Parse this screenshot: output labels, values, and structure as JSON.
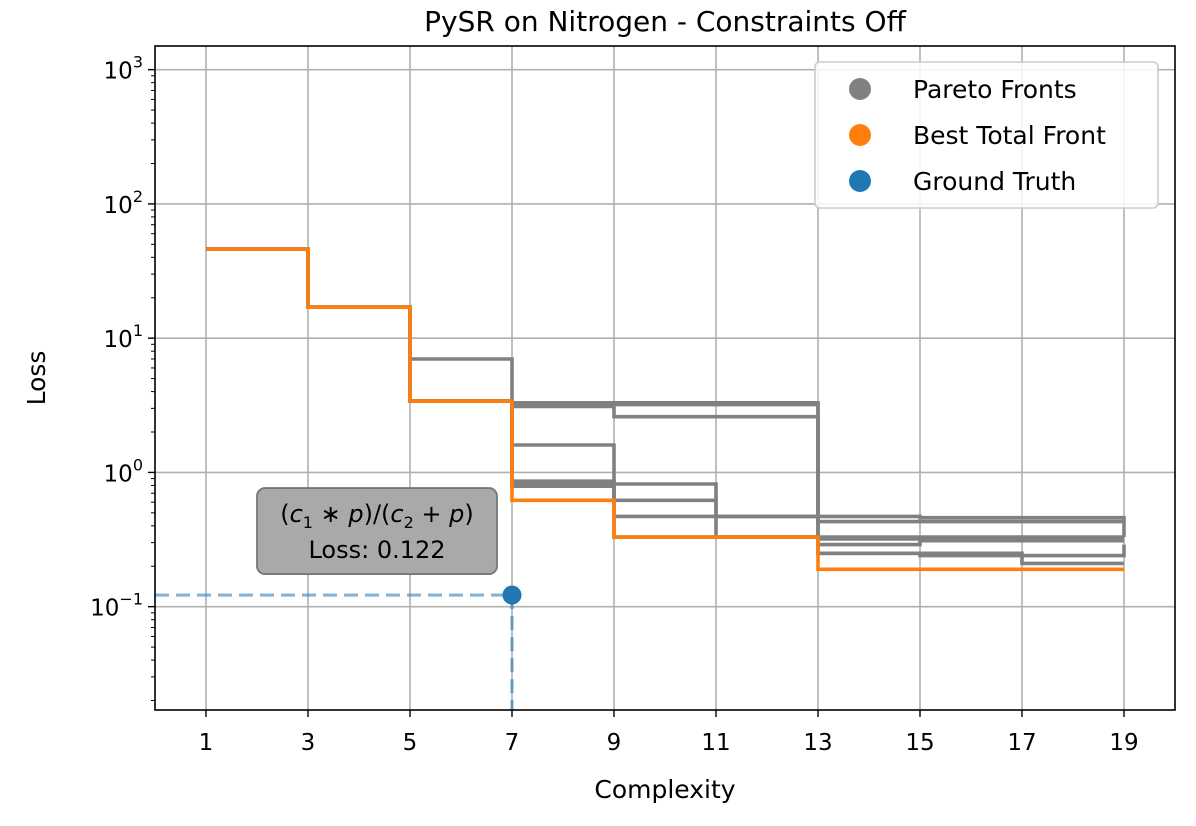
{
  "chart_data": {
    "type": "line",
    "title": "PySR on Nitrogen - Constraints Off",
    "xlabel": "Complexity",
    "ylabel": "Loss",
    "y_scale": "log",
    "xlim": [
      0,
      20
    ],
    "ylim": [
      0.017,
      1500
    ],
    "x_ticks": [
      1,
      3,
      5,
      7,
      9,
      11,
      13,
      15,
      17,
      19
    ],
    "x_tick_labels": [
      "1",
      "3",
      "5",
      "7",
      "9",
      "11",
      "13",
      "15",
      "17",
      "19"
    ],
    "y_ticks": [
      {
        "value": 0.1,
        "base": "10",
        "exp": "−1"
      },
      {
        "value": 1,
        "base": "10",
        "exp": "0"
      },
      {
        "value": 10,
        "base": "10",
        "exp": "1"
      },
      {
        "value": 100,
        "base": "10",
        "exp": "2"
      },
      {
        "value": 1000,
        "base": "10",
        "exp": "3"
      }
    ],
    "grid": true,
    "legend_position": "top-right",
    "legend": [
      {
        "label": "Pareto Fronts",
        "color": "#808080"
      },
      {
        "label": "Best Total Front",
        "color": "#ff7f0e"
      },
      {
        "label": "Ground Truth",
        "color": "#1f77b4"
      }
    ],
    "series": [
      {
        "name": "Pareto Fronts",
        "color": "#808080",
        "role": "pareto",
        "x": [
          1,
          3,
          5,
          7,
          9,
          13,
          19
        ],
        "y": [
          46,
          17,
          3.4,
          3.3,
          3.3,
          0.43,
          0.43
        ]
      },
      {
        "name": "Pareto Fronts",
        "color": "#808080",
        "role": "pareto",
        "x": [
          1,
          3,
          5,
          7,
          9,
          13,
          15,
          19
        ],
        "y": [
          46,
          17,
          3.4,
          3.2,
          3.2,
          0.47,
          0.46,
          0.33
        ]
      },
      {
        "name": "Pareto Fronts",
        "color": "#808080",
        "role": "pareto",
        "x": [
          1,
          3,
          5,
          7,
          9,
          13,
          19
        ],
        "y": [
          46,
          17,
          3.4,
          3.1,
          2.6,
          0.33,
          0.33
        ]
      },
      {
        "name": "Pareto Fronts",
        "color": "#808080",
        "role": "pareto",
        "x": [
          1,
          3,
          5,
          7,
          9,
          11,
          13,
          19
        ],
        "y": [
          46,
          17,
          7.0,
          1.6,
          0.82,
          0.47,
          0.32,
          0.32
        ]
      },
      {
        "name": "Pareto Fronts",
        "color": "#808080",
        "role": "pareto",
        "x": [
          1,
          3,
          5,
          7,
          9,
          11,
          13,
          15,
          19
        ],
        "y": [
          46,
          17,
          3.4,
          0.86,
          0.62,
          0.47,
          0.29,
          0.31,
          0.31
        ]
      },
      {
        "name": "Pareto Fronts",
        "color": "#808080",
        "role": "pareto",
        "x": [
          1,
          3,
          5,
          7,
          9,
          11,
          13,
          17,
          19
        ],
        "y": [
          46,
          17,
          3.4,
          0.81,
          0.47,
          0.33,
          0.25,
          0.21,
          0.21
        ]
      },
      {
        "name": "Pareto Fronts",
        "color": "#808080",
        "role": "pareto",
        "x": [
          1,
          3,
          5,
          7,
          9,
          11,
          13,
          15,
          19
        ],
        "y": [
          46,
          17,
          3.4,
          0.79,
          0.33,
          0.33,
          0.25,
          0.24,
          0.29
        ]
      },
      {
        "name": "Best Total Front",
        "color": "#ff7f0e",
        "role": "best",
        "x": [
          1,
          3,
          5,
          7,
          9,
          11,
          13,
          19
        ],
        "y": [
          46,
          17,
          3.4,
          0.62,
          0.33,
          0.33,
          0.19,
          0.19
        ]
      }
    ],
    "ground_truth": {
      "name": "Ground Truth",
      "color": "#1f77b4",
      "x": 7,
      "y": 0.122,
      "x_text": "7",
      "y_text": "0.122",
      "label_formula_parts": [
        {
          "t": "(",
          "style": "normal"
        },
        {
          "t": "c",
          "style": "italic"
        },
        {
          "t": "1",
          "style": "sub"
        },
        {
          "t": " ∗ ",
          "style": "normal"
        },
        {
          "t": "p",
          "style": "italic"
        },
        {
          "t": ")/(",
          "style": "normal"
        },
        {
          "t": "c",
          "style": "italic"
        },
        {
          "t": "2",
          "style": "sub"
        },
        {
          "t": " + ",
          "style": "normal"
        },
        {
          "t": "p",
          "style": "italic"
        },
        {
          "t": ")",
          "style": "normal"
        }
      ],
      "label_loss_prefix": "Loss: "
    },
    "annotation_box": {
      "fill": "#a9a9a9",
      "edge": "#777777"
    }
  }
}
